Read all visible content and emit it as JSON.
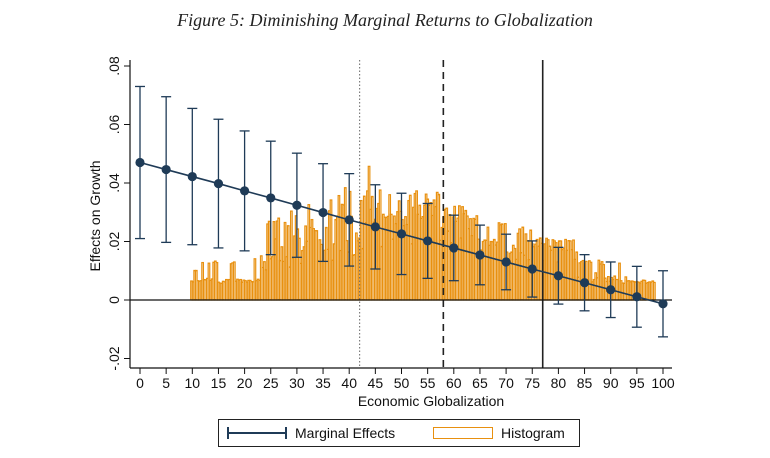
{
  "figure_title": "Figure 5: Diminishing Marginal Returns to Globalization",
  "chart_data": {
    "type": "line",
    "title": "Figure 5: Diminishing Marginal Returns to Globalization",
    "xlabel": "Economic Globalization",
    "ylabel": "Effects on Growth",
    "xlim": [
      0,
      100
    ],
    "ylim": [
      -0.02,
      0.08
    ],
    "x_ticks": [
      "0",
      "5",
      "10",
      "15",
      "20",
      "25",
      "30",
      "35",
      "40",
      "45",
      "50",
      "55",
      "60",
      "65",
      "70",
      "75",
      "80",
      "85",
      "90",
      "95",
      "100"
    ],
    "y_ticks": [
      {
        "value": -0.02,
        "label": "-.02"
      },
      {
        "value": 0,
        "label": "0"
      },
      {
        "value": 0.02,
        "label": ".02"
      },
      {
        "value": 0.04,
        "label": ".04"
      },
      {
        "value": 0.06,
        "label": ".06"
      },
      {
        "value": 0.08,
        "label": ".08"
      }
    ],
    "grid": false,
    "legend_position": "bottom",
    "colors": {
      "marginal": "#1f3b57",
      "histogram": "#e8900f"
    },
    "series": [
      {
        "name": "Marginal Effects",
        "x": [
          0,
          5,
          10,
          15,
          20,
          25,
          30,
          35,
          40,
          45,
          50,
          55,
          60,
          65,
          70,
          75,
          80,
          85,
          90,
          95,
          100
        ],
        "y": [
          0.047,
          0.0446,
          0.0422,
          0.0398,
          0.0373,
          0.0349,
          0.0324,
          0.0299,
          0.0274,
          0.025,
          0.0226,
          0.0202,
          0.0178,
          0.0154,
          0.013,
          0.0106,
          0.0083,
          0.0059,
          0.0035,
          0.0011,
          -0.0013
        ],
        "upper": [
          0.073,
          0.0695,
          0.0655,
          0.0618,
          0.0578,
          0.0543,
          0.0502,
          0.0466,
          0.0432,
          0.0394,
          0.0365,
          0.033,
          0.029,
          0.0256,
          0.0225,
          0.0202,
          0.018,
          0.0155,
          0.013,
          0.0115,
          0.01
        ],
        "lower": [
          0.021,
          0.0197,
          0.0189,
          0.0178,
          0.0168,
          0.0155,
          0.0146,
          0.0132,
          0.0116,
          0.0106,
          0.0087,
          0.0074,
          0.0066,
          0.0052,
          0.0035,
          0.001,
          -0.0014,
          -0.0037,
          -0.006,
          -0.0093,
          -0.0126
        ]
      },
      {
        "name": "Histogram",
        "type": "bar",
        "x_range": [
          9.7,
          98.5
        ],
        "values": [
          0.0065,
          0.0062,
          0.0101,
          0.0101,
          0.0066,
          0.0064,
          0.0066,
          0.0128,
          0.007,
          0.0069,
          0.0074,
          0.0126,
          0.0067,
          0.0072,
          0.0129,
          0.0133,
          0.0128,
          0.0061,
          0.0058,
          0.0057,
          0.0064,
          0.0062,
          0.007,
          0.0069,
          0.007,
          0.0124,
          0.0127,
          0.013,
          0.0064,
          0.0071,
          0.0068,
          0.007,
          0.0061,
          0.0068,
          0.0066,
          0.0061,
          0.0067,
          0.0067,
          0.0063,
          0.0062,
          0.0141,
          0.0066,
          0.0071,
          0.0067,
          0.0151,
          0.0111,
          0.0131,
          0.0103,
          0.026,
          0.0269,
          0.0141,
          0.0148,
          0.0268,
          0.0209,
          0.027,
          0.028,
          0.0135,
          0.0182,
          0.0132,
          0.0265,
          0.0148,
          0.0254,
          0.0113,
          0.0304,
          0.0143,
          0.0219,
          0.0288,
          0.0243,
          0.0211,
          0.0125,
          0.0169,
          0.0182,
          0.0253,
          0.0201,
          0.0326,
          0.0248,
          0.0275,
          0.0244,
          0.0237,
          0.0237,
          0.0134,
          0.0206,
          0.019,
          0.0132,
          0.017,
          0.0248,
          0.0173,
          0.0305,
          0.0342,
          0.0136,
          0.0192,
          0.0275,
          0.0287,
          0.0357,
          0.0169,
          0.0327,
          0.0325,
          0.0384,
          0.0203,
          0.0164,
          0.0371,
          0.0286,
          0.0153,
          0.0155,
          0.0229,
          0.0202,
          0.0212,
          0.034,
          0.0176,
          0.0355,
          0.0264,
          0.0373,
          0.0457,
          0.031,
          0.0354,
          0.0266,
          0.0276,
          0.0313,
          0.033,
          0.0376,
          0.0183,
          0.0293,
          0.0283,
          0.0282,
          0.0286,
          0.036,
          0.0293,
          0.0208,
          0.0287,
          0.0261,
          0.0302,
          0.0339,
          0.0303,
          0.0275,
          0.0254,
          0.0285,
          0.0258,
          0.034,
          0.0358,
          0.0192,
          0.0317,
          0.0364,
          0.0373,
          0.0293,
          0.0324,
          0.0279,
          0.0285,
          0.0324,
          0.0362,
          0.0345,
          0.0324,
          0.0333,
          0.0289,
          0.0342,
          0.0319,
          0.0368,
          0.0361,
          0.0204,
          0.0248,
          0.0284,
          0.031,
          0.0314,
          0.0236,
          0.0292,
          0.0196,
          0.0284,
          0.032,
          0.0269,
          0.028,
          0.0322,
          0.0212,
          0.0319,
          0.0295,
          0.0306,
          0.0287,
          0.0244,
          0.0278,
          0.022,
          0.0279,
          0.0276,
          0.0288,
          0.0208,
          0.0149,
          0.0171,
          0.02,
          0.0205,
          0.0204,
          0.0249,
          0.0187,
          0.02,
          0.0199,
          0.0207,
          0.0188,
          0.0198,
          0.0264,
          0.0257,
          0.026,
          0.013,
          0.0261,
          0.0164,
          0.0129,
          0.016,
          0.0164,
          0.0187,
          0.0176,
          0.0139,
          0.0228,
          0.0243,
          0.0162,
          0.0249,
          0.0153,
          0.0226,
          0.0203,
          0.0138,
          0.0239,
          0.0192,
          0.0182,
          0.0191,
          0.0207,
          0.0184,
          0.0212,
          0.0194,
          0.0135,
          0.0192,
          0.0211,
          0.0206,
          0.0184,
          0.017,
          0.0206,
          0.0202,
          0.0196,
          0.013,
          0.0202,
          0.0202,
          0.0172,
          0.0177,
          0.0207,
          0.017,
          0.0203,
          0.0202,
          0.0172,
          0.0205,
          0.0139,
          0.0164,
          0.0078,
          0.0127,
          0.0131,
          0.0135,
          0.0126,
          0.0132,
          0.007,
          0.0134,
          0.0129,
          0.0062,
          0.007,
          0.0093,
          0.0076,
          0.0136,
          0.0123,
          0.0131,
          0.0121,
          0.0075,
          0.0063,
          0.008,
          0.0064,
          0.0077,
          0.007,
          0.0082,
          0.007,
          0.007,
          0.0126,
          0.0066,
          0.0058,
          0.0057,
          0.0079,
          0.0065,
          0.0066,
          0.0062,
          0.0065,
          0.0063,
          0.0061,
          0.0063,
          0.0061,
          0.0058,
          0.0064,
          0.0068,
          0.0067,
          0.0057,
          0.006,
          0.0062,
          0.0061,
          0.0065,
          0.006
        ]
      }
    ],
    "reference_lines": [
      {
        "x": 42,
        "style": "dotted"
      },
      {
        "x": 58,
        "style": "dashed"
      },
      {
        "x": 77,
        "style": "solid"
      }
    ],
    "legend": [
      "Marginal Effects",
      "Histogram"
    ]
  }
}
